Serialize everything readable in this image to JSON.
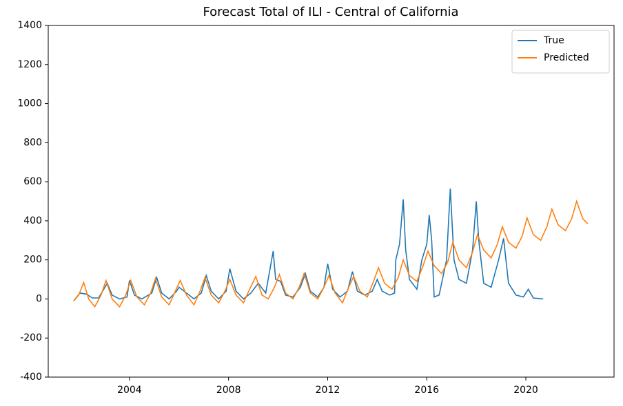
{
  "chart_data": {
    "type": "line",
    "title": "Forecast Total of ILI - Central of California",
    "xlim": [
      2000.72,
      2023.56
    ],
    "xticks": [
      2004,
      2008,
      2012,
      2016,
      2020
    ],
    "ylim": [
      -400,
      1400
    ],
    "yticks": [
      -400,
      -200,
      0,
      200,
      400,
      600,
      800,
      1000,
      1200,
      1400
    ],
    "legend": "upper right",
    "grid": false,
    "series": [
      {
        "name": "True",
        "color": "#1f77b4",
        "x": [
          2001.75,
          2002.0,
          2002.25,
          2002.5,
          2002.75,
          2003.1,
          2003.3,
          2003.6,
          2003.9,
          2004.0,
          2004.2,
          2004.5,
          2004.9,
          2005.1,
          2005.3,
          2005.6,
          2005.9,
          2006.0,
          2006.3,
          2006.6,
          2006.9,
          2007.1,
          2007.3,
          2007.6,
          2007.9,
          2008.05,
          2008.3,
          2008.6,
          2008.9,
          2009.2,
          2009.5,
          2009.8,
          2009.9,
          2010.1,
          2010.3,
          2010.6,
          2010.9,
          2011.1,
          2011.3,
          2011.6,
          2011.85,
          2012.0,
          2012.2,
          2012.5,
          2012.8,
          2013.0,
          2013.2,
          2013.5,
          2013.8,
          2014.0,
          2014.2,
          2014.5,
          2014.7,
          2014.75,
          2014.9,
          2015.05,
          2015.15,
          2015.3,
          2015.6,
          2015.8,
          2016.0,
          2016.1,
          2016.2,
          2016.3,
          2016.5,
          2016.8,
          2016.95,
          2017.1,
          2017.3,
          2017.6,
          2017.85,
          2018.0,
          2018.1,
          2018.3,
          2018.6,
          2018.9,
          2019.1,
          2019.3,
          2019.6,
          2019.9,
          2020.1,
          2020.3,
          2020.7
        ],
        "values": [
          -10,
          30,
          25,
          5,
          5,
          80,
          20,
          0,
          10,
          95,
          20,
          0,
          30,
          110,
          30,
          0,
          40,
          60,
          30,
          0,
          30,
          120,
          40,
          0,
          40,
          155,
          40,
          0,
          30,
          80,
          30,
          245,
          100,
          90,
          20,
          10,
          60,
          130,
          40,
          10,
          60,
          180,
          50,
          10,
          40,
          140,
          40,
          20,
          40,
          100,
          40,
          20,
          30,
          200,
          280,
          510,
          250,
          100,
          50,
          200,
          280,
          430,
          300,
          10,
          20,
          200,
          565,
          200,
          100,
          80,
          250,
          500,
          300,
          80,
          60,
          200,
          310,
          80,
          20,
          10,
          50,
          5,
          0
        ]
      },
      {
        "name": "Predicted",
        "color": "#ff7f0e",
        "x": [
          2001.75,
          2001.95,
          2002.15,
          2002.35,
          2002.6,
          2002.85,
          2003.05,
          2003.3,
          2003.6,
          2003.85,
          2004.05,
          2004.3,
          2004.6,
          2004.85,
          2005.05,
          2005.3,
          2005.6,
          2005.85,
          2006.05,
          2006.3,
          2006.6,
          2006.85,
          2007.05,
          2007.3,
          2007.6,
          2007.85,
          2008.05,
          2008.3,
          2008.6,
          2008.85,
          2009.1,
          2009.35,
          2009.6,
          2009.85,
          2010.05,
          2010.3,
          2010.6,
          2010.85,
          2011.05,
          2011.3,
          2011.6,
          2011.85,
          2012.05,
          2012.3,
          2012.6,
          2012.85,
          2013.05,
          2013.3,
          2013.6,
          2013.85,
          2014.05,
          2014.3,
          2014.6,
          2014.85,
          2015.05,
          2015.3,
          2015.6,
          2015.85,
          2016.05,
          2016.3,
          2016.6,
          2016.85,
          2017.05,
          2017.3,
          2017.6,
          2017.85,
          2018.05,
          2018.3,
          2018.6,
          2018.85,
          2019.05,
          2019.3,
          2019.6,
          2019.85,
          2020.05,
          2020.3,
          2020.6,
          2020.85,
          2021.05,
          2021.3,
          2021.6,
          2021.85,
          2022.05,
          2022.3,
          2022.5
        ],
        "values": [
          -10,
          20,
          85,
          0,
          -40,
          20,
          95,
          0,
          -40,
          20,
          95,
          10,
          -30,
          30,
          105,
          10,
          -30,
          40,
          95,
          20,
          -30,
          40,
          110,
          20,
          -20,
          40,
          100,
          20,
          -20,
          50,
          115,
          20,
          0,
          60,
          125,
          30,
          0,
          60,
          130,
          30,
          0,
          60,
          120,
          30,
          -20,
          60,
          115,
          40,
          10,
          90,
          160,
          80,
          50,
          110,
          200,
          120,
          90,
          170,
          245,
          170,
          130,
          190,
          290,
          200,
          160,
          240,
          330,
          250,
          210,
          280,
          370,
          290,
          260,
          320,
          415,
          330,
          300,
          370,
          460,
          380,
          350,
          410,
          500,
          410,
          385
        ]
      }
    ]
  }
}
